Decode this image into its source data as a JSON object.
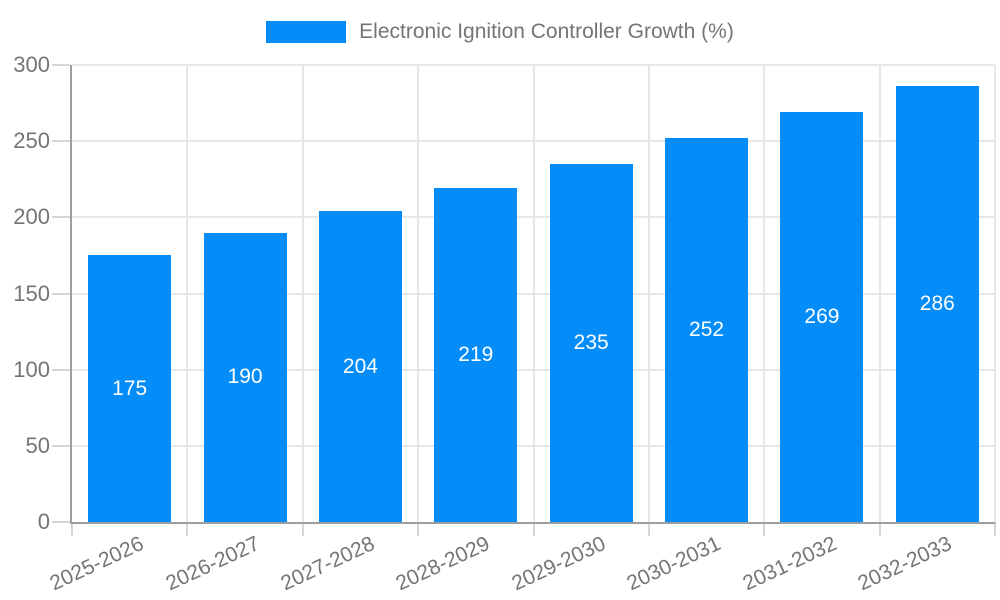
{
  "legend": {
    "label": "Electronic Ignition Controller Growth (%)"
  },
  "colors": {
    "bar": "#048cf8",
    "grid": "#e7e7e7",
    "axis": "#9e9e9e",
    "tick": "#d6d6d6",
    "axis_text": "#757575",
    "value_label": "#ffffff"
  },
  "chart_data": {
    "type": "bar",
    "title": "Electronic Ignition Controller Growth (%)",
    "categories": [
      "2025-2026",
      "2026-2027",
      "2027-2028",
      "2028-2029",
      "2029-2030",
      "2030-2031",
      "2031-2032",
      "2032-2033"
    ],
    "values": [
      175,
      190,
      204,
      219,
      235,
      252,
      269,
      286
    ],
    "xlabel": "",
    "ylabel": "",
    "ylim": [
      0,
      300
    ],
    "yticks": [
      0,
      50,
      100,
      150,
      200,
      250,
      300
    ],
    "grid": true,
    "legend_position": "top-center",
    "x_label_rotation_deg": -25,
    "value_label_position": "inside-center"
  }
}
